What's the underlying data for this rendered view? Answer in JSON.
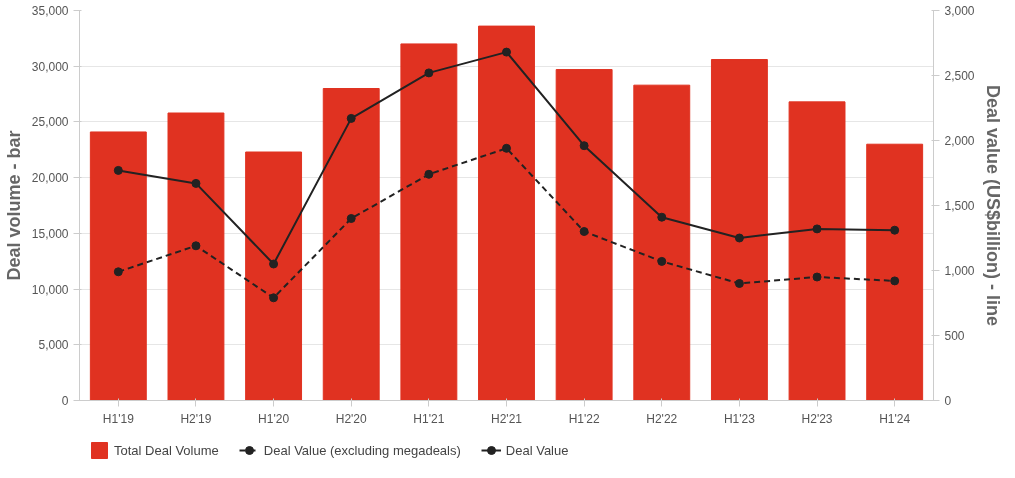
{
  "chart_data": {
    "type": "bar",
    "ylabel": "Deal volume - bar",
    "y2label": "Deal value (US$billion) - line",
    "categories": [
      "H1'19",
      "H2'19",
      "H1'20",
      "H2'20",
      "H1'21",
      "H2'21",
      "H1'22",
      "H2'22",
      "H1'23",
      "H2'23",
      "H1'24"
    ],
    "series": [
      {
        "name": "Total Deal Volume",
        "color": "#e03221",
        "values": [
          24100,
          25800,
          22300,
          28000,
          32000,
          33600,
          29700,
          28300,
          30600,
          26800,
          23000
        ]
      },
      {
        "name": "Deal Value (excluding megadeals)",
        "type": "line",
        "axis": "y2",
        "color": "#222222",
        "line_style": "dashed",
        "values": [
          990,
          1190,
          790,
          1400,
          1740,
          1940,
          1300,
          1070,
          900,
          950,
          920
        ]
      },
      {
        "name": "Deal Value",
        "type": "line",
        "axis": "y2",
        "color": "#222222",
        "line_style": "solid",
        "values": [
          1770,
          1670,
          1050,
          2170,
          2520,
          2680,
          1960,
          1410,
          1250,
          1320,
          1310
        ]
      }
    ],
    "ylim": [
      0,
      35000
    ],
    "yticks": [
      {
        "value": 0,
        "label": "0"
      },
      {
        "value": 5000,
        "label": "5,000"
      },
      {
        "value": 10000,
        "label": "10,000"
      },
      {
        "value": 15000,
        "label": "15,000"
      },
      {
        "value": 20000,
        "label": "20,000"
      },
      {
        "value": 25000,
        "label": "25,000"
      },
      {
        "value": 30000,
        "label": "30,000"
      },
      {
        "value": 35000,
        "label": "35,000"
      }
    ],
    "y2lim": [
      0,
      3000
    ],
    "y2ticks": [
      {
        "value": 0,
        "label": "0"
      },
      {
        "value": 500,
        "label": "500"
      },
      {
        "value": 1000,
        "label": "1,000"
      },
      {
        "value": 1500,
        "label": "1,500"
      },
      {
        "value": 2000,
        "label": "2,000"
      },
      {
        "value": 2500,
        "label": "2,500"
      },
      {
        "value": 3000,
        "label": "3,000"
      }
    ],
    "grid": "y",
    "legend": "bottom left",
    "marker": "circle"
  }
}
